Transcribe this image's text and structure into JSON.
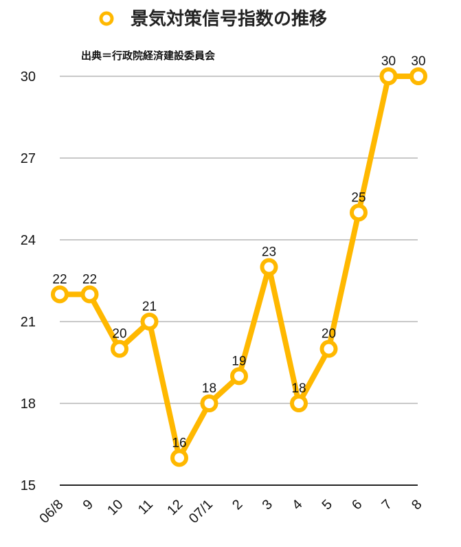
{
  "legend": {
    "label": "景気対策信号指数の推移"
  },
  "source": "出典＝行政院経済建設委員会",
  "colors": {
    "series": "#FFB800",
    "grid": "#b5b5b5",
    "text": "#111111"
  },
  "chart_data": {
    "type": "line",
    "title": "",
    "categories": [
      "06/8",
      "9",
      "10",
      "11",
      "12",
      "07/1",
      "2",
      "3",
      "4",
      "5",
      "6",
      "7",
      "8"
    ],
    "series": [
      {
        "name": "景気対策信号指数の推移",
        "values": [
          22,
          22,
          20,
          21,
          16,
          18,
          19,
          23,
          18,
          20,
          25,
          30,
          30
        ]
      }
    ],
    "yticks": [
      15,
      18,
      21,
      24,
      27,
      30
    ],
    "ylim": [
      15,
      30
    ],
    "grid": true,
    "legend_position": "top-center",
    "data_labels": true
  }
}
